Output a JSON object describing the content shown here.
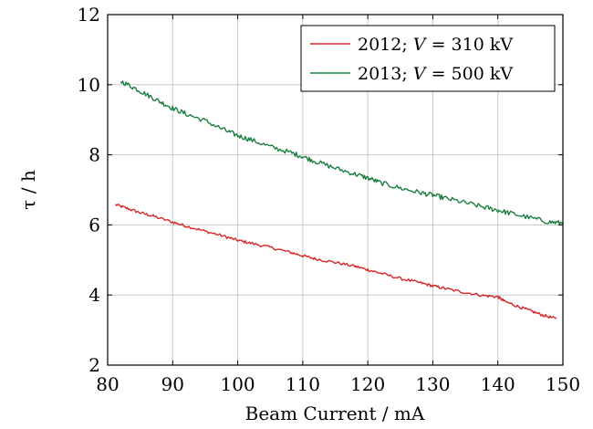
{
  "chart_data": {
    "type": "line",
    "title": "",
    "xlabel": "Beam Current / mA",
    "ylabel": "τ / h",
    "xlim": [
      80,
      150
    ],
    "ylim": [
      2,
      12
    ],
    "xticks": [
      80,
      90,
      100,
      110,
      120,
      130,
      140,
      150
    ],
    "yticks": [
      2,
      4,
      6,
      8,
      10,
      12
    ],
    "grid": true,
    "legend_position": "top-right",
    "series": [
      {
        "name": "2012; V = 310 kV",
        "legend_parts": {
          "year": "2012; ",
          "var": "V",
          "rest": " = 310 kV"
        },
        "color": "#d62728",
        "x": [
          81.2,
          83,
          85,
          87,
          90,
          92,
          95,
          98,
          100,
          102,
          105,
          108,
          110,
          112,
          115,
          118,
          120,
          122,
          125,
          128,
          130,
          132,
          135,
          138,
          140,
          141,
          143,
          145,
          147,
          149
        ],
        "y": [
          6.58,
          6.47,
          6.35,
          6.25,
          6.08,
          5.97,
          5.82,
          5.67,
          5.56,
          5.48,
          5.36,
          5.22,
          5.12,
          5.03,
          4.93,
          4.82,
          4.72,
          4.62,
          4.47,
          4.35,
          4.26,
          4.18,
          4.07,
          3.98,
          3.95,
          3.82,
          3.68,
          3.55,
          3.42,
          3.32
        ]
      },
      {
        "name": "2013; V = 500 kV",
        "legend_parts": {
          "year": "2013; ",
          "var": "V",
          "rest": " = 500 kV"
        },
        "color": "#1a8040",
        "x": [
          82,
          84,
          86,
          88,
          90,
          92,
          95,
          98,
          100,
          102,
          105,
          108,
          110,
          112,
          115,
          118,
          120,
          122,
          125,
          128,
          130,
          132,
          135,
          138,
          140,
          142,
          145,
          148,
          150
        ],
        "y": [
          10.1,
          9.92,
          9.72,
          9.52,
          9.33,
          9.17,
          8.97,
          8.7,
          8.55,
          8.43,
          8.23,
          8.07,
          7.95,
          7.81,
          7.62,
          7.45,
          7.34,
          7.2,
          7.05,
          6.92,
          6.85,
          6.76,
          6.63,
          6.5,
          6.42,
          6.33,
          6.2,
          6.08,
          6.05
        ]
      }
    ]
  }
}
